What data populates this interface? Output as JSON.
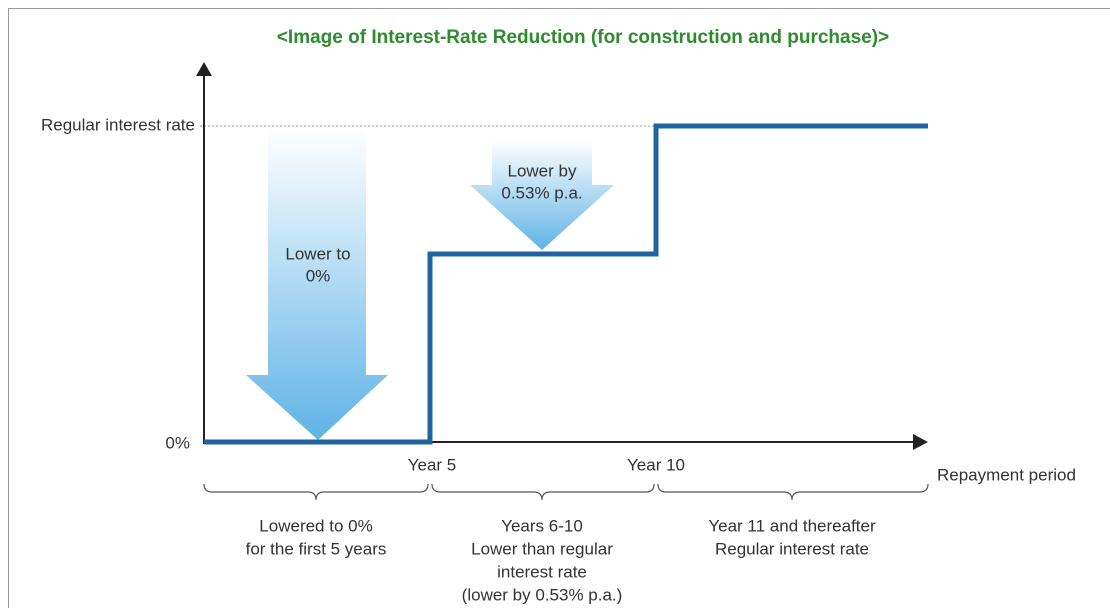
{
  "title": "<Image of Interest-Rate Reduction (for construction and purchase)>",
  "y_axis": {
    "top_label": "Regular interest rate",
    "bottom_label": "0%"
  },
  "x_axis": {
    "label": "Repayment period",
    "marks": [
      "Year 5",
      "Year 10"
    ]
  },
  "arrows": [
    {
      "lines": [
        "Lower to",
        "0%"
      ]
    },
    {
      "lines": [
        "Lower by",
        "0.53% p.a."
      ]
    }
  ],
  "periods": [
    {
      "lines": [
        "Lowered to 0%",
        "for the first 5 years"
      ]
    },
    {
      "lines": [
        "Years 6-10",
        "Lower than regular",
        "interest rate",
        "(lower by 0.53% p.a.)"
      ]
    },
    {
      "lines": [
        "Year 11 and thereafter",
        "Regular interest rate"
      ]
    }
  ]
}
